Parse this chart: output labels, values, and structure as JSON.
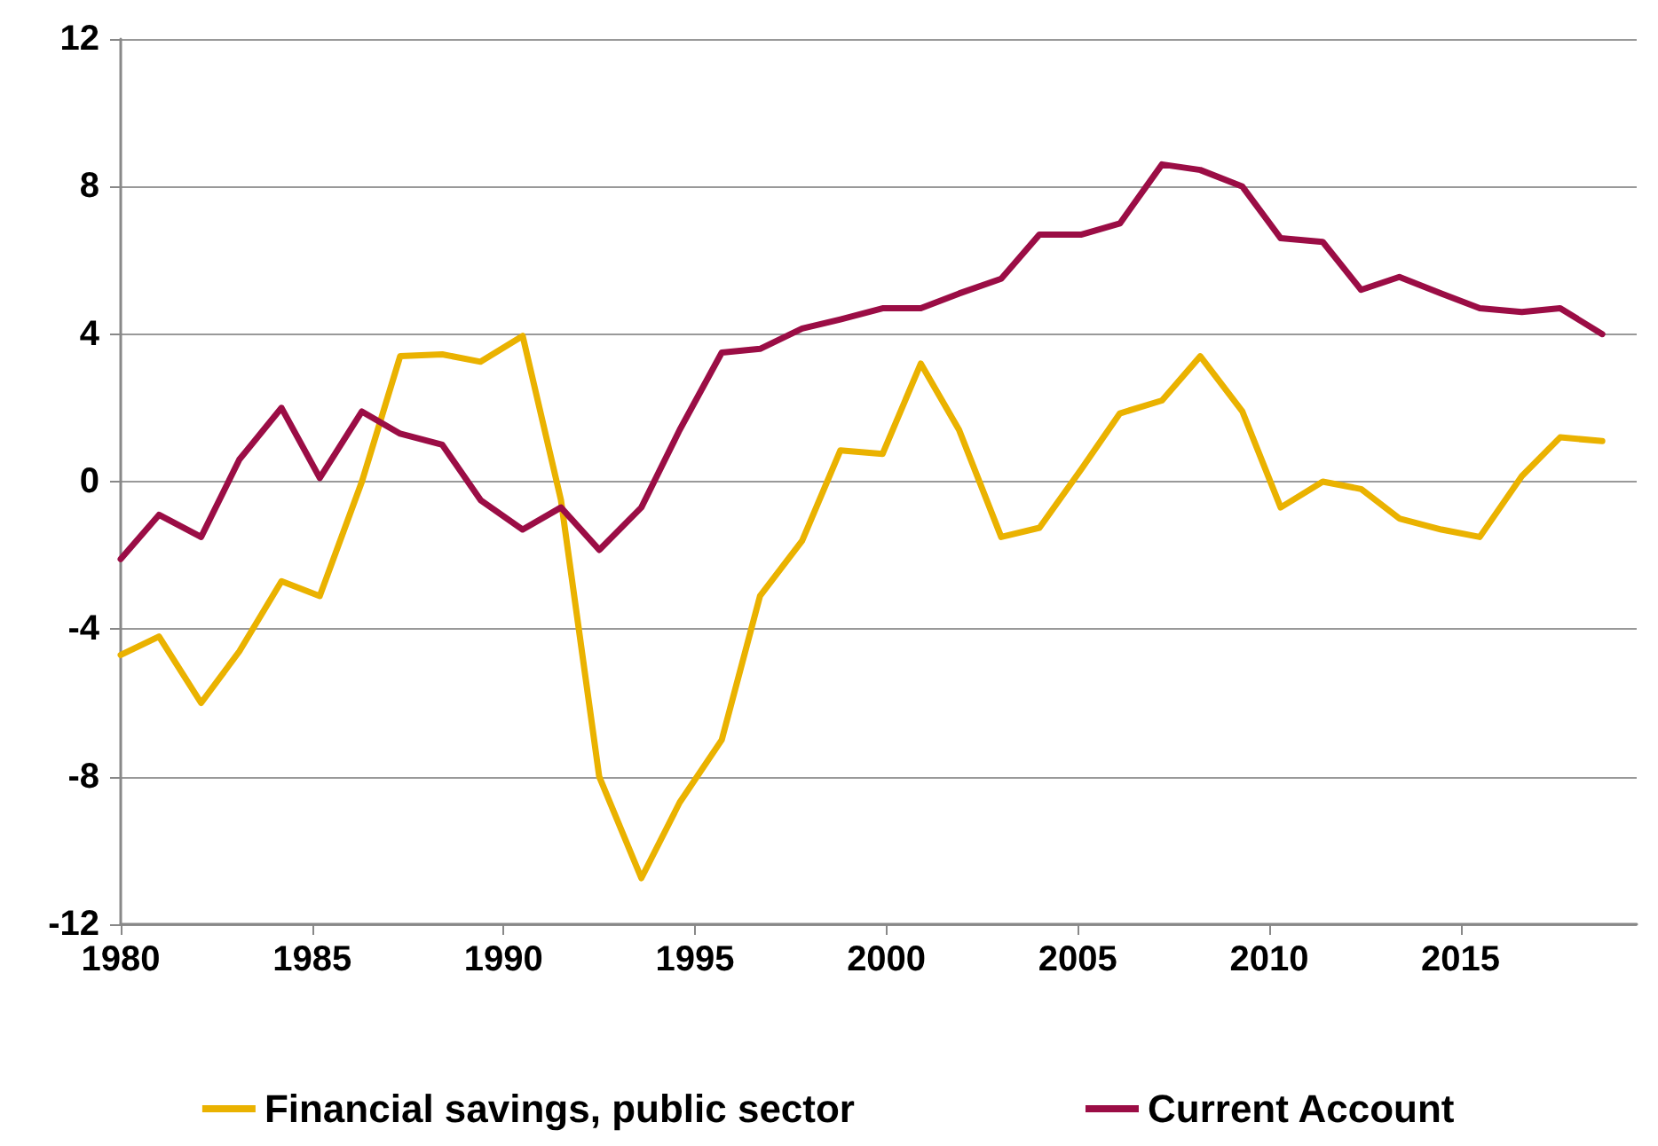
{
  "chart_data": {
    "type": "line",
    "x": [
      1980,
      1981,
      1982.1,
      1983.1,
      1984.2,
      1985.2,
      1986.3,
      1987.3,
      1988.4,
      1989.4,
      1990.5,
      1991.5,
      1992.5,
      1993.6,
      1994.6,
      1995.7,
      1996.7,
      1997.8,
      1998.8,
      1999.9,
      2000.9,
      2001.9,
      2003,
      2004,
      2005.1,
      2006.1,
      2007.2,
      2008.2,
      2009.3,
      2010.3,
      2011.4,
      2012.4,
      2013.4,
      2014.5,
      2015.5,
      2016.6,
      2017.6,
      2018.7
    ],
    "series": [
      {
        "name": "Financial savings, public sector",
        "color": "#eab200",
        "values": [
          -4.7,
          -4.2,
          -6.0,
          -4.6,
          -2.7,
          -3.1,
          0.0,
          3.4,
          3.45,
          3.25,
          3.95,
          -0.5,
          -8.0,
          -10.75,
          -8.7,
          -7.0,
          -3.1,
          -1.6,
          0.85,
          0.75,
          3.2,
          1.4,
          -1.5,
          -1.25,
          0.35,
          1.85,
          2.2,
          3.4,
          1.9,
          -0.7,
          0.0,
          -0.2,
          -1.0,
          -1.3,
          -1.5,
          0.15,
          1.2,
          1.1
        ]
      },
      {
        "name": "Current Account",
        "color": "#9b0d45",
        "values": [
          -2.1,
          -0.9,
          -1.5,
          0.6,
          2.0,
          0.1,
          1.9,
          1.3,
          1.0,
          -0.5,
          -1.3,
          -0.7,
          -1.85,
          -0.7,
          1.4,
          3.5,
          3.6,
          4.15,
          4.4,
          4.7,
          4.7,
          5.1,
          5.5,
          6.7,
          6.7,
          7.0,
          8.6,
          8.45,
          8.0,
          6.6,
          6.5,
          5.2,
          5.55,
          5.1,
          4.7,
          4.6,
          4.7,
          4.0
        ]
      }
    ],
    "xlim": [
      1980,
      2019.6
    ],
    "xticks": [
      1980,
      1985,
      1990,
      1995,
      2000,
      2005,
      2010,
      2015
    ],
    "ylim": [
      -12,
      12
    ],
    "yticks": [
      -12,
      -8,
      -4,
      0,
      4,
      8,
      12
    ],
    "grid": "y",
    "legend": "bottom",
    "marker": "none",
    "line_style": "solid"
  }
}
